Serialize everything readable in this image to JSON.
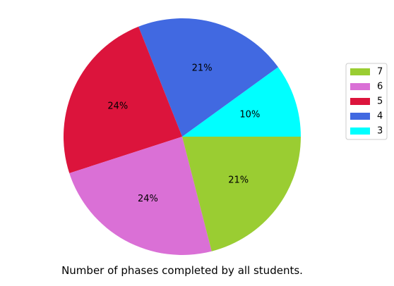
{
  "chart_data": {
    "type": "pie",
    "title": "",
    "caption": "Number of phases completed by all students.",
    "legend_position": "right",
    "slices": [
      {
        "label": "3",
        "value": 10,
        "pct_label": "10%",
        "color": "#00ffff"
      },
      {
        "label": "4",
        "value": 21,
        "pct_label": "21%",
        "color": "#4169e1"
      },
      {
        "label": "5",
        "value": 24,
        "pct_label": "24%",
        "color": "#dc143c"
      },
      {
        "label": "6",
        "value": 24,
        "pct_label": "24%",
        "color": "#da70d6"
      },
      {
        "label": "7",
        "value": 21,
        "pct_label": "21%",
        "color": "#9acd32"
      }
    ],
    "legend_order": [
      "7",
      "6",
      "5",
      "4",
      "3"
    ]
  }
}
